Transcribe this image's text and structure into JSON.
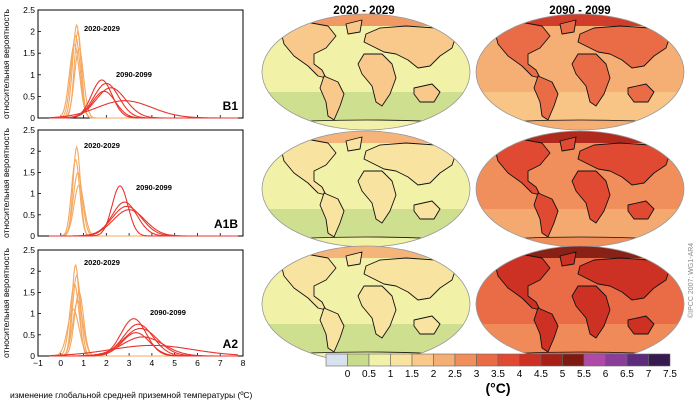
{
  "chart_data": [
    {
      "type": "line",
      "panel_label": "B1",
      "ylabel": "относительная вероятность",
      "xlim": [
        -1,
        8
      ],
      "ylim": [
        0,
        2.5
      ],
      "yticks": [
        0,
        0.5,
        1,
        1.5,
        2,
        2.5
      ],
      "annotations": [
        "2020-2029",
        "2090-2099"
      ],
      "series_groups": [
        {
          "period": "2020-2029",
          "color": "#f4a860",
          "peaks": [
            {
              "mu": 0.7,
              "sd": 0.18,
              "peak": 2.15
            },
            {
              "mu": 0.65,
              "sd": 0.2,
              "peak": 1.9
            },
            {
              "mu": 0.75,
              "sd": 0.16,
              "peak": 2.0
            },
            {
              "mu": 0.6,
              "sd": 0.22,
              "peak": 1.7
            },
            {
              "mu": 0.8,
              "sd": 0.2,
              "peak": 1.6
            }
          ]
        },
        {
          "period": "2090-2099",
          "color": "#e8342c",
          "peaks": [
            {
              "mu": 1.8,
              "sd": 0.45,
              "peak": 0.88
            },
            {
              "mu": 2.0,
              "sd": 0.55,
              "peak": 0.8
            },
            {
              "mu": 2.2,
              "sd": 0.65,
              "peak": 0.7
            },
            {
              "mu": 1.9,
              "sd": 0.5,
              "peak": 0.62
            },
            {
              "mu": 2.8,
              "sd": 1.2,
              "peak": 0.4
            }
          ]
        }
      ]
    },
    {
      "type": "line",
      "panel_label": "A1B",
      "ylabel": "относительная вероятность",
      "xlim": [
        -1,
        8
      ],
      "ylim": [
        0,
        2.5
      ],
      "yticks": [
        0,
        0.5,
        1,
        1.5,
        2,
        2.5
      ],
      "annotations": [
        "2020-2029",
        "2090-2099"
      ],
      "series_groups": [
        {
          "period": "2020-2029",
          "color": "#f4a860",
          "peaks": [
            {
              "mu": 0.7,
              "sd": 0.16,
              "peak": 2.1
            },
            {
              "mu": 0.65,
              "sd": 0.18,
              "peak": 1.8
            },
            {
              "mu": 0.75,
              "sd": 0.2,
              "peak": 1.5
            },
            {
              "mu": 0.8,
              "sd": 0.22,
              "peak": 1.2
            }
          ]
        },
        {
          "period": "2090-2099",
          "color": "#e8342c",
          "peaks": [
            {
              "mu": 2.6,
              "sd": 0.35,
              "peak": 1.18
            },
            {
              "mu": 2.8,
              "sd": 0.55,
              "peak": 0.8
            },
            {
              "mu": 2.9,
              "sd": 0.65,
              "peak": 0.7
            },
            {
              "mu": 3.0,
              "sd": 0.7,
              "peak": 0.62
            }
          ]
        }
      ]
    },
    {
      "type": "line",
      "panel_label": "A2",
      "ylabel": "относительная вероятность",
      "xlabel": "изменение глобальной средней приземной температуры (ºС)",
      "xlim": [
        -1,
        8
      ],
      "ylim": [
        0,
        2.5
      ],
      "xticks": [
        -1,
        0,
        1,
        2,
        3,
        4,
        5,
        6,
        7,
        8
      ],
      "xticklabels": [
        "−1",
        "0",
        "1",
        "2",
        "3",
        "4",
        "5",
        "6",
        "7",
        "8"
      ],
      "yticks": [
        0,
        0.5,
        1,
        1.5,
        2,
        2.5
      ],
      "annotations": [
        "2020-2029",
        "2090-2099"
      ],
      "series_groups": [
        {
          "period": "2020-2029",
          "color": "#f4a860",
          "peaks": [
            {
              "mu": 0.65,
              "sd": 0.16,
              "peak": 2.15
            },
            {
              "mu": 0.7,
              "sd": 0.18,
              "peak": 1.9
            },
            {
              "mu": 0.6,
              "sd": 0.2,
              "peak": 1.7
            },
            {
              "mu": 0.8,
              "sd": 0.2,
              "peak": 1.5
            },
            {
              "mu": 0.75,
              "sd": 0.22,
              "peak": 1.3
            },
            {
              "mu": 0.55,
              "sd": 0.25,
              "peak": 1.1
            }
          ]
        },
        {
          "period": "2090-2099",
          "color": "#e8342c",
          "peaks": [
            {
              "mu": 3.2,
              "sd": 0.55,
              "peak": 0.88
            },
            {
              "mu": 3.4,
              "sd": 0.65,
              "peak": 0.75
            },
            {
              "mu": 3.5,
              "sd": 0.75,
              "peak": 0.65
            },
            {
              "mu": 3.3,
              "sd": 0.6,
              "peak": 0.55
            },
            {
              "mu": 3.6,
              "sd": 0.9,
              "peak": 0.45
            },
            {
              "mu": 4.0,
              "sd": 1.8,
              "peak": 0.25
            }
          ]
        }
      ]
    },
    {
      "type": "heatmap",
      "description_columns": [
        "2020 - 2029",
        "2090 - 2099"
      ],
      "rows": [
        "B1",
        "A1B",
        "A2"
      ],
      "colorbar": {
        "ticks": [
          "0",
          "0.5",
          "1",
          "1.5",
          "2",
          "2.5",
          "3",
          "3.5",
          "4",
          "4.5",
          "5",
          "5.5",
          "6",
          "6.5",
          "7",
          "7.5"
        ],
        "colors": [
          "#d8e2ef",
          "#c9dc8c",
          "#f1f2a8",
          "#f9e3a0",
          "#f8c98a",
          "#f5ae74",
          "#f18f5c",
          "#ea6c47",
          "#e04a33",
          "#cc3124",
          "#a81f17",
          "#7f1a12",
          "#b04aa8",
          "#8b3d9a",
          "#5d2b7c",
          "#361a50"
        ],
        "unit": "(°C)"
      },
      "maps": [
        {
          "row": "B1",
          "period": "2020 - 2029",
          "ocean_level": 2,
          "land_level": 4
        },
        {
          "row": "B1",
          "period": "2090 - 2099",
          "ocean_level": 5,
          "land_level": 7
        },
        {
          "row": "A1B",
          "period": "2020 - 2029",
          "ocean_level": 2,
          "land_level": 3
        },
        {
          "row": "A1B",
          "period": "2090 - 2099",
          "ocean_level": 6,
          "land_level": 8
        },
        {
          "row": "A2",
          "period": "2020 - 2029",
          "ocean_level": 2,
          "land_level": 3
        },
        {
          "row": "A2",
          "period": "2090 - 2099",
          "ocean_level": 7,
          "land_level": 9
        }
      ]
    }
  ],
  "credit": "©IPCC 2007: WG1-AR4"
}
